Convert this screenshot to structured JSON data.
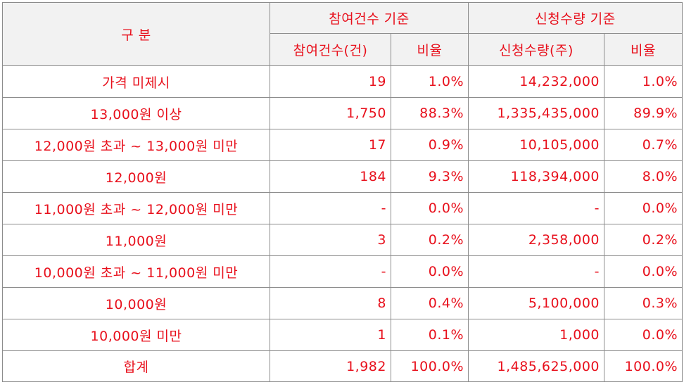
{
  "header": {
    "category": "구 분",
    "group_participants": "참여건수 기준",
    "group_quantity": "신청수량 기준",
    "participants_count": "참여건수(건)",
    "participants_ratio": "비율",
    "quantity_shares": "신청수량(주)",
    "quantity_ratio": "비율"
  },
  "rows": [
    {
      "category": "가격 미제시",
      "count": "19",
      "count_ratio": "1.0%",
      "shares": "14,232,000",
      "shares_ratio": "1.0%"
    },
    {
      "category": "13,000원 이상",
      "count": "1,750",
      "count_ratio": "88.3%",
      "shares": "1,335,435,000",
      "shares_ratio": "89.9%"
    },
    {
      "category": "12,000원 초과 ~ 13,000원 미만",
      "count": "17",
      "count_ratio": "0.9%",
      "shares": "10,105,000",
      "shares_ratio": "0.7%"
    },
    {
      "category": "12,000원",
      "count": "184",
      "count_ratio": "9.3%",
      "shares": "118,394,000",
      "shares_ratio": "8.0%"
    },
    {
      "category": "11,000원 초과 ~ 12,000원 미만",
      "count": "-",
      "count_ratio": "0.0%",
      "shares": "-",
      "shares_ratio": "0.0%"
    },
    {
      "category": "11,000원",
      "count": "3",
      "count_ratio": "0.2%",
      "shares": "2,358,000",
      "shares_ratio": "0.2%"
    },
    {
      "category": "10,000원 초과 ~ 11,000원 미만",
      "count": "-",
      "count_ratio": "0.0%",
      "shares": "-",
      "shares_ratio": "0.0%"
    },
    {
      "category": "10,000원",
      "count": "8",
      "count_ratio": "0.4%",
      "shares": "5,100,000",
      "shares_ratio": "0.3%"
    },
    {
      "category": "10,000원 미만",
      "count": "1",
      "count_ratio": "0.1%",
      "shares": "1,000",
      "shares_ratio": "0.0%"
    },
    {
      "category": "합계",
      "count": "1,982",
      "count_ratio": "100.0%",
      "shares": "1,485,625,000",
      "shares_ratio": "100.0%"
    }
  ],
  "colors": {
    "text": "#e8101c",
    "header_bg": "#f2f2f2",
    "border": "#8c8c8c"
  }
}
